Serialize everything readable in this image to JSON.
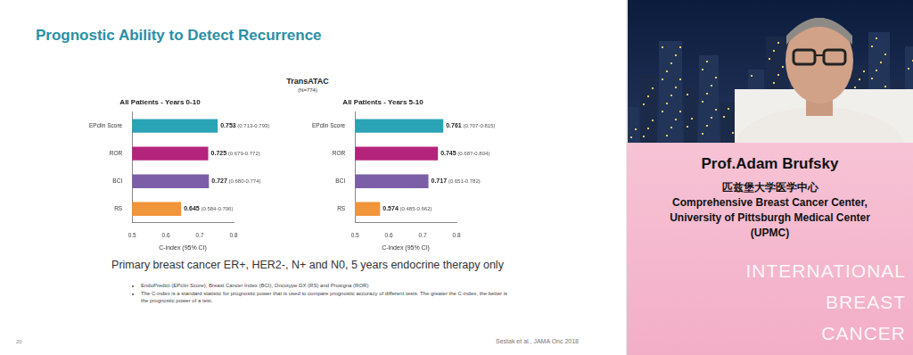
{
  "slide": {
    "title": "Prognostic Ability to Detect Recurrence",
    "study": "TransATAC",
    "n": "(N=774)",
    "subtitle": "Primary breast cancer ER+, HER2-, N+ and N0, 5 years endocrine therapy only",
    "footnotes": [
      "EndoPredict (EPclin Score), Breast Cancer Index (BCI), Oncotype DX (RS) and Prosigna (ROR)",
      "The C-index is a standard statistic for prognostic power that is used to compare prognostic accuracy of different tests. The greater the C-index, the better is the prognostic power of a test."
    ],
    "page": "20",
    "citation": "Sestak et al., JAMA Onc 2018"
  },
  "chart_data": [
    {
      "type": "bar",
      "orientation": "horizontal",
      "title": "All Patients - Years 0-10",
      "categories": [
        "EPclin Score",
        "ROR",
        "BCI",
        "RS"
      ],
      "values": [
        0.753,
        0.725,
        0.727,
        0.645
      ],
      "value_labels": [
        "0.753 (0.713-0.793)",
        "0.725 (0.679-0.772)",
        "0.727 (0.680-0.774)",
        "0.645 (0.584-0.706)"
      ],
      "colors": [
        "#2aa3b6",
        "#b4237c",
        "#7b5ea7",
        "#f0953a"
      ],
      "x_label": "C-index (95% CI)",
      "xlim": [
        0.5,
        0.8
      ],
      "xticks": [
        0.5,
        0.6,
        0.7,
        0.8
      ],
      "grid": false,
      "data_labels": true
    },
    {
      "type": "bar",
      "orientation": "horizontal",
      "title": "All Patients - Years 5-10",
      "categories": [
        "EPclin Score",
        "ROR",
        "BCI",
        "RS"
      ],
      "values": [
        0.761,
        0.745,
        0.717,
        0.574
      ],
      "value_labels": [
        "0.761 (0.707-0.815)",
        "0.745 (0.687-0.804)",
        "0.717 (0.651-0.782)",
        "0.574 (0.485-0.662)"
      ],
      "colors": [
        "#2aa3b6",
        "#b4237c",
        "#7b5ea7",
        "#f0953a"
      ],
      "x_label": "C-index (95% CI)",
      "xlim": [
        0.5,
        0.8
      ],
      "xticks": [
        0.5,
        0.6,
        0.7,
        0.8
      ],
      "grid": false,
      "data_labels": true
    }
  ],
  "speaker": {
    "name": "Prof.Adam Brufsky",
    "affiliation": [
      "匹兹堡大学医学中心",
      "Comprehensive Breast Cancer Center,",
      "University of Pittsburgh Medical Center",
      "(UPMC)"
    ],
    "banner": [
      "INTERNATIONAL",
      "BREAST",
      "CANCER"
    ]
  }
}
